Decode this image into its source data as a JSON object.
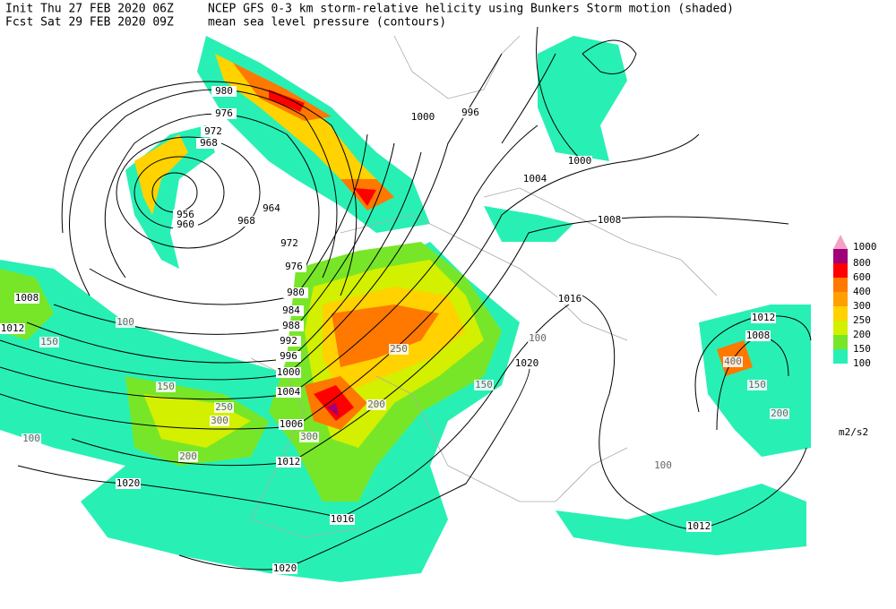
{
  "header": {
    "init": "Init  Thu 27 FEB 2020 06Z",
    "fcst": "Fcst Sat 29 FEB 2020 09Z",
    "title": "NCEP GFS 0-3 km storm-relative helicity using Bunkers Storm motion (shaded)",
    "subtitle": "mean sea level pressure (contours)"
  },
  "legend": {
    "unit": "m2/s2",
    "levels": [
      {
        "label": "1000",
        "color": "#f4a0c8"
      },
      {
        "label": "800",
        "color": "#a00078"
      },
      {
        "label": "600",
        "color": "#ff0000"
      },
      {
        "label": "400",
        "color": "#ff7800"
      },
      {
        "label": "300",
        "color": "#ffa000"
      },
      {
        "label": "250",
        "color": "#ffd200"
      },
      {
        "label": "200",
        "color": "#d2f000"
      },
      {
        "label": "150",
        "color": "#78e628"
      },
      {
        "label": "100",
        "color": "#28f0b4"
      }
    ]
  },
  "contours": [
    "980",
    "976",
    "972",
    "968",
    "964",
    "956",
    "960",
    "968",
    "972",
    "976",
    "980",
    "984",
    "988",
    "992",
    "996",
    "1000",
    "1004",
    "1006",
    "1012",
    "1020",
    "1016",
    "1020",
    "996",
    "1000",
    "1000",
    "1004",
    "1008",
    "1016",
    "1020",
    "1012",
    "1008",
    "1012",
    "1008",
    "1012"
  ],
  "helicity_labels": [
    "100",
    "150",
    "200",
    "250",
    "300",
    "100",
    "150",
    "300",
    "250",
    "200",
    "100",
    "150",
    "400",
    "150",
    "200",
    "100"
  ]
}
